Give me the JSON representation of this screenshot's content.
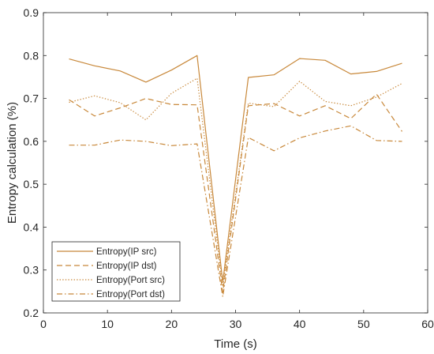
{
  "chart_data": {
    "type": "line",
    "title": "",
    "xlabel": "Time (s)",
    "ylabel": "Entropy calculation (%)",
    "xlim": [
      0,
      60
    ],
    "ylim": [
      0.2,
      0.9
    ],
    "xticks": [
      0,
      10,
      20,
      30,
      40,
      50,
      60
    ],
    "yticks": [
      0.2,
      0.3,
      0.4,
      0.5,
      0.6,
      0.7,
      0.8,
      0.9
    ],
    "xtick_labels": [
      "0",
      "10",
      "20",
      "30",
      "40",
      "50",
      "60"
    ],
    "ytick_labels": [
      "0.2",
      "0.3",
      "0.4",
      "0.5",
      "0.6",
      "0.7",
      "0.8",
      "0.9"
    ],
    "grid": false,
    "legend_position": "bottom-left",
    "line_color": "#C8883A",
    "x": [
      4,
      8,
      12,
      16,
      20,
      24,
      28,
      32,
      36,
      40,
      44,
      48,
      52,
      56
    ],
    "series": [
      {
        "name": "Entropy(IP src)",
        "style": "solid",
        "values": [
          0.792,
          0.776,
          0.764,
          0.738,
          0.766,
          0.8,
          0.272,
          0.749,
          0.755,
          0.793,
          0.789,
          0.757,
          0.763,
          0.782
        ]
      },
      {
        "name": "Entropy(IP dst)",
        "style": "dashed",
        "values": [
          0.697,
          0.659,
          0.678,
          0.7,
          0.686,
          0.685,
          0.248,
          0.683,
          0.688,
          0.659,
          0.683,
          0.653,
          0.71,
          0.623
        ]
      },
      {
        "name": "Entropy(Port src)",
        "style": "dotted",
        "values": [
          0.691,
          0.706,
          0.69,
          0.65,
          0.712,
          0.747,
          0.262,
          0.689,
          0.681,
          0.74,
          0.693,
          0.683,
          0.703,
          0.735
        ]
      },
      {
        "name": "Entropy(Port dst)",
        "style": "dashdot",
        "values": [
          0.591,
          0.591,
          0.603,
          0.6,
          0.59,
          0.594,
          0.238,
          0.609,
          0.578,
          0.608,
          0.624,
          0.636,
          0.602,
          0.6
        ]
      }
    ]
  }
}
